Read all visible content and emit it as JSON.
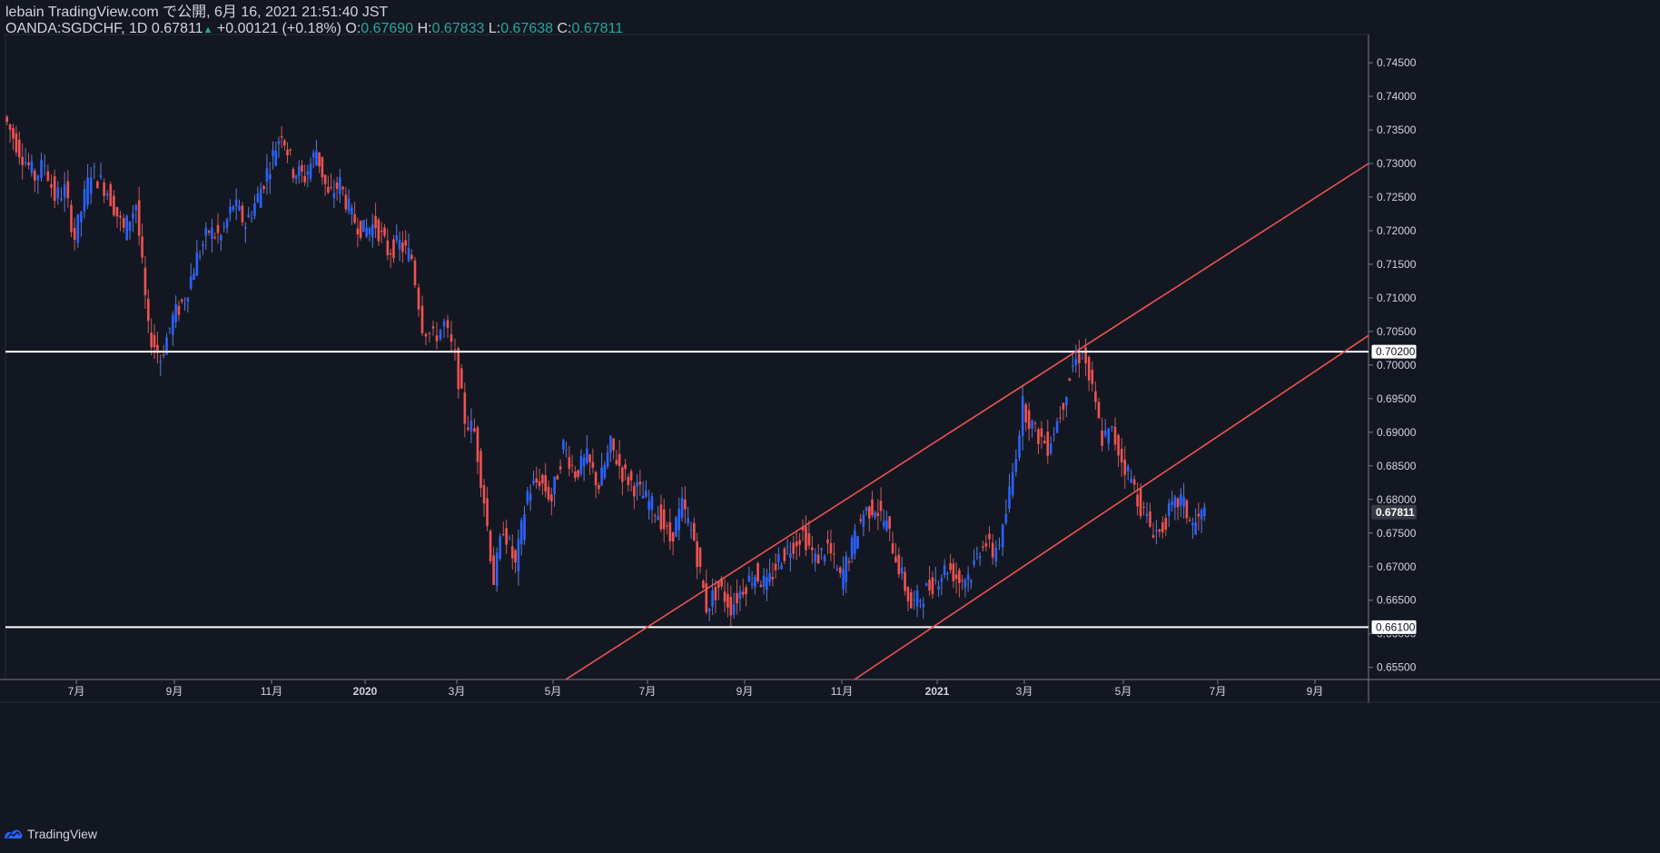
{
  "header": {
    "publish_line": "lebain TradingView.com で公開, 6月 16, 2021 21:51:40 JST",
    "symbol": "OANDA:SGDCHF, 1D",
    "last_price": "0.67811",
    "change": "+0.00121 (+0.18%)",
    "open_label": "O:",
    "open_value": "0.67690",
    "high_label": "H:",
    "high_value": "0.67833",
    "low_label": "L:",
    "low_value": "0.67638",
    "close_label": "C:",
    "close_value": "0.67811"
  },
  "footer": {
    "brand": "TradingView"
  },
  "colors": {
    "background": "#131722",
    "up_candle": "#2962ff",
    "down_candle": "#ef5350",
    "trendline": "#ef5350",
    "horizontal_line": "#ffffff",
    "text_positive": "#26a69a"
  },
  "chart_data": {
    "type": "candlestick",
    "title": "OANDA:SGDCHF, 1D",
    "y_axis": {
      "ticks": [
        "0.74500",
        "0.74000",
        "0.73500",
        "0.73000",
        "0.72500",
        "0.72000",
        "0.71500",
        "0.71000",
        "0.70500",
        "0.70000",
        "0.69500",
        "0.69000",
        "0.68500",
        "0.68000",
        "0.67500",
        "0.67000",
        "0.66500",
        "0.66000",
        "0.65500"
      ],
      "range": [
        0.6532,
        0.7492
      ],
      "side": "right"
    },
    "x_axis": {
      "labels": [
        "7月",
        "9月",
        "11月",
        "2020",
        "3月",
        "5月",
        "7月",
        "9月",
        "11月",
        "2021",
        "3月",
        "5月",
        "7月",
        "9月"
      ],
      "bold_labels": [
        "2020",
        "2021"
      ]
    },
    "price_tags": [
      {
        "value": "0.70200",
        "style": "outline"
      },
      {
        "value": "0.67811",
        "style": "current"
      },
      {
        "value": "0.66100",
        "style": "outline"
      }
    ],
    "horizontal_lines": [
      0.702,
      0.661
    ],
    "trend_lines": [
      {
        "start": [
          "2020-05",
          0.6532
        ],
        "end": [
          "2021-07",
          0.73
        ]
      },
      {
        "start": [
          "2020-11",
          0.6532
        ],
        "end": [
          "2021-07",
          0.7044
        ]
      }
    ],
    "price_path": [
      [
        "2019-05",
        0.737
      ],
      [
        "2019-05",
        0.732
      ],
      [
        "2019-06",
        0.728
      ],
      [
        "2019-06",
        0.73
      ],
      [
        "2019-06",
        0.725
      ],
      [
        "2019-06",
        0.726
      ],
      [
        "2019-07",
        0.719
      ],
      [
        "2019-07",
        0.729
      ],
      [
        "2019-07",
        0.726
      ],
      [
        "2019-08",
        0.72
      ],
      [
        "2019-08",
        0.724
      ],
      [
        "2019-08",
        0.705
      ],
      [
        "2019-08",
        0.701
      ],
      [
        "2019-09",
        0.707
      ],
      [
        "2019-09",
        0.71
      ],
      [
        "2019-09",
        0.716
      ],
      [
        "2019-09",
        0.72
      ],
      [
        "2019-10",
        0.719
      ],
      [
        "2019-10",
        0.724
      ],
      [
        "2019-10",
        0.721
      ],
      [
        "2019-10",
        0.725
      ],
      [
        "2019-11",
        0.73
      ],
      [
        "2019-11",
        0.735
      ],
      [
        "2019-11",
        0.729
      ],
      [
        "2019-11",
        0.728
      ],
      [
        "2019-12",
        0.732
      ],
      [
        "2019-12",
        0.725
      ],
      [
        "2019-12",
        0.727
      ],
      [
        "2019-12",
        0.722
      ],
      [
        "2020-01",
        0.72
      ],
      [
        "2020-01",
        0.721
      ],
      [
        "2020-01",
        0.717
      ],
      [
        "2020-01",
        0.718
      ],
      [
        "2020-02",
        0.716
      ],
      [
        "2020-02",
        0.706
      ],
      [
        "2020-02",
        0.704
      ],
      [
        "2020-02",
        0.706
      ],
      [
        "2020-03",
        0.701
      ],
      [
        "2020-03",
        0.692
      ],
      [
        "2020-03",
        0.69
      ],
      [
        "2020-03",
        0.68
      ],
      [
        "2020-03",
        0.668
      ],
      [
        "2020-04",
        0.676
      ],
      [
        "2020-04",
        0.67
      ],
      [
        "2020-04",
        0.681
      ],
      [
        "2020-04",
        0.683
      ],
      [
        "2020-05",
        0.68
      ],
      [
        "2020-05",
        0.688
      ],
      [
        "2020-05",
        0.684
      ],
      [
        "2020-05",
        0.686
      ],
      [
        "2020-06",
        0.682
      ],
      [
        "2020-06",
        0.688
      ],
      [
        "2020-06",
        0.684
      ],
      [
        "2020-06",
        0.682
      ],
      [
        "2020-07",
        0.68
      ],
      [
        "2020-07",
        0.678
      ],
      [
        "2020-07",
        0.674
      ],
      [
        "2020-07",
        0.679
      ],
      [
        "2020-08",
        0.674
      ],
      [
        "2020-08",
        0.664
      ],
      [
        "2020-08",
        0.667
      ],
      [
        "2020-08",
        0.664
      ],
      [
        "2020-09",
        0.667
      ],
      [
        "2020-09",
        0.669
      ],
      [
        "2020-09",
        0.667
      ],
      [
        "2020-09",
        0.671
      ],
      [
        "2020-10",
        0.673
      ],
      [
        "2020-10",
        0.675
      ],
      [
        "2020-10",
        0.671
      ],
      [
        "2020-10",
        0.673
      ],
      [
        "2020-11",
        0.668
      ],
      [
        "2020-11",
        0.673
      ],
      [
        "2020-11",
        0.678
      ],
      [
        "2020-11",
        0.679
      ],
      [
        "2020-12",
        0.676
      ],
      [
        "2020-12",
        0.67
      ],
      [
        "2020-12",
        0.664
      ],
      [
        "2020-12",
        0.666
      ],
      [
        "2021-01",
        0.668
      ],
      [
        "2021-01",
        0.67
      ],
      [
        "2021-01",
        0.668
      ],
      [
        "2021-01",
        0.669
      ],
      [
        "2021-02",
        0.674
      ],
      [
        "2021-02",
        0.672
      ],
      [
        "2021-02",
        0.675
      ],
      [
        "2021-02",
        0.684
      ],
      [
        "2021-03",
        0.694
      ],
      [
        "2021-03",
        0.69
      ],
      [
        "2021-03",
        0.688
      ],
      [
        "2021-03",
        0.693
      ],
      [
        "2021-04",
        0.7
      ],
      [
        "2021-04",
        0.702
      ],
      [
        "2021-04",
        0.696
      ],
      [
        "2021-04",
        0.689
      ],
      [
        "2021-04",
        0.69
      ],
      [
        "2021-05",
        0.686
      ],
      [
        "2021-05",
        0.683
      ],
      [
        "2021-05",
        0.679
      ],
      [
        "2021-05",
        0.676
      ],
      [
        "2021-05",
        0.675
      ],
      [
        "2021-06",
        0.678
      ],
      [
        "2021-06",
        0.68
      ],
      [
        "2021-06",
        0.676
      ],
      [
        "2021-06",
        0.678
      ]
    ]
  }
}
